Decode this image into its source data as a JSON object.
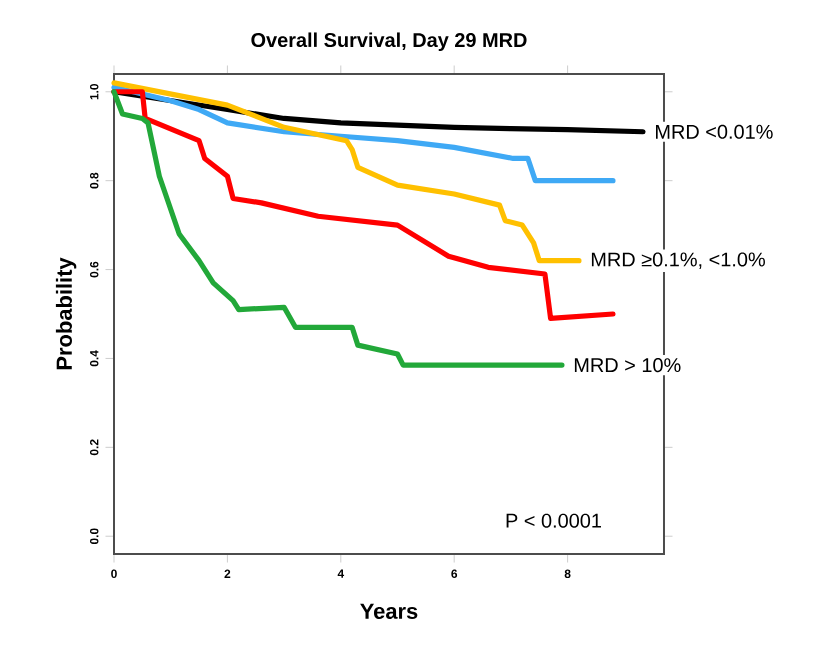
{
  "chart_data": {
    "type": "line",
    "title": "Overall Survival, Day 29 MRD",
    "xlabel": "Years",
    "ylabel": "Probability",
    "xlim": [
      0,
      9.7
    ],
    "ylim": [
      -0.04,
      1.04
    ],
    "xticks": [
      0,
      2,
      4,
      6,
      8
    ],
    "yticks": [
      {
        "value": 0,
        "label": "0.0"
      },
      {
        "value": 0.2,
        "label": "0.2"
      },
      {
        "value": 0.4,
        "label": "0.4"
      },
      {
        "value": 0.6,
        "label": "0.6"
      },
      {
        "value": 0.8,
        "label": "0.8"
      },
      {
        "value": 1,
        "label": "1.0"
      }
    ],
    "series": [
      {
        "name": "MRD <0.01%",
        "color": "#000000",
        "x": [
          0,
          1,
          2,
          3,
          4,
          5,
          6,
          7,
          8,
          9.33
        ],
        "values": [
          1.0,
          0.98,
          0.96,
          0.94,
          0.93,
          0.925,
          0.92,
          0.917,
          0.915,
          0.91
        ]
      },
      {
        "color": "#3fa9f5",
        "x": [
          0,
          1,
          1.5,
          2,
          3,
          4,
          5,
          6,
          7.04,
          7.3,
          7.43,
          8.8
        ],
        "values": [
          1.01,
          0.98,
          0.96,
          0.93,
          0.91,
          0.9,
          0.89,
          0.875,
          0.85,
          0.85,
          0.8,
          0.8
        ]
      },
      {
        "name": "MRD ≥0.1%, <1.0%",
        "color": "#ffc000",
        "x": [
          0,
          2,
          3,
          4.1,
          4.2,
          4.3,
          5,
          6,
          6.8,
          6.9,
          7.2,
          7.4,
          7.5,
          8.2
        ],
        "values": [
          1.02,
          0.97,
          0.92,
          0.89,
          0.87,
          0.83,
          0.79,
          0.77,
          0.745,
          0.71,
          0.7,
          0.66,
          0.62,
          0.62
        ]
      },
      {
        "color": "#ff0000",
        "x": [
          0,
          0.5,
          0.55,
          1.5,
          1.6,
          2,
          2.1,
          2.6,
          3.6,
          5,
          5.9,
          6.6,
          7.6,
          7.7,
          8.8
        ],
        "values": [
          1.0,
          1.0,
          0.94,
          0.89,
          0.85,
          0.81,
          0.76,
          0.75,
          0.72,
          0.7,
          0.63,
          0.605,
          0.59,
          0.49,
          0.5
        ]
      },
      {
        "name": "MRD > 10%",
        "color": "#22a839",
        "x": [
          0,
          0.15,
          0.5,
          0.6,
          0.8,
          1.15,
          1.5,
          1.75,
          2.1,
          2.2,
          3.0,
          3.2,
          4.2,
          4.3,
          5.0,
          5.1,
          7.9
        ],
        "values": [
          1.0,
          0.95,
          0.94,
          0.93,
          0.81,
          0.68,
          0.62,
          0.57,
          0.53,
          0.51,
          0.515,
          0.47,
          0.47,
          0.43,
          0.41,
          0.385,
          0.385
        ]
      }
    ],
    "annotations": [
      "P < 0.0001"
    ]
  }
}
